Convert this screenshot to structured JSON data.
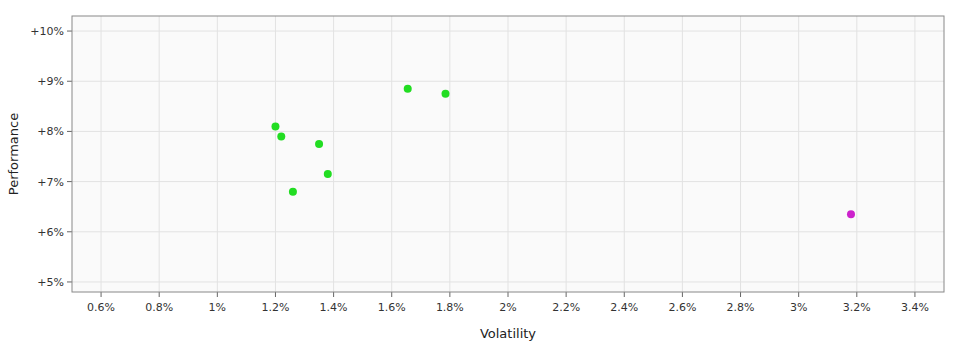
{
  "chart_data": {
    "type": "scatter",
    "xlabel": "Volatility",
    "ylabel": "Performance",
    "xlim": [
      0.005,
      0.035
    ],
    "ylim": [
      0.048,
      0.103
    ],
    "xticks": [
      {
        "value": 0.006,
        "label": "0.6%"
      },
      {
        "value": 0.008,
        "label": "0.8%"
      },
      {
        "value": 0.01,
        "label": "1%"
      },
      {
        "value": 0.012,
        "label": "1.2%"
      },
      {
        "value": 0.014,
        "label": "1.4%"
      },
      {
        "value": 0.016,
        "label": "1.6%"
      },
      {
        "value": 0.018,
        "label": "1.8%"
      },
      {
        "value": 0.02,
        "label": "2%"
      },
      {
        "value": 0.022,
        "label": "2.2%"
      },
      {
        "value": 0.024,
        "label": "2.4%"
      },
      {
        "value": 0.026,
        "label": "2.6%"
      },
      {
        "value": 0.028,
        "label": "2.8%"
      },
      {
        "value": 0.03,
        "label": "3%"
      },
      {
        "value": 0.032,
        "label": "3.2%"
      },
      {
        "value": 0.034,
        "label": "3.4%"
      }
    ],
    "yticks": [
      {
        "value": 0.05,
        "label": "+5%"
      },
      {
        "value": 0.06,
        "label": "+6%"
      },
      {
        "value": 0.07,
        "label": "+7%"
      },
      {
        "value": 0.08,
        "label": "+8%"
      },
      {
        "value": 0.09,
        "label": "+9%"
      },
      {
        "value": 0.1,
        "label": "+10%"
      }
    ],
    "grid": true,
    "series": [
      {
        "color": "#22dd22",
        "x": [
          0.012,
          0.0122,
          0.0126,
          0.0135,
          0.0138,
          0.01655,
          0.01785
        ],
        "values": [
          0.081,
          0.079,
          0.068,
          0.0775,
          0.0715,
          0.0885,
          0.0875
        ]
      },
      {
        "color": "#cc22cc",
        "x": [
          0.0318
        ],
        "values": [
          0.0635
        ]
      }
    ]
  }
}
